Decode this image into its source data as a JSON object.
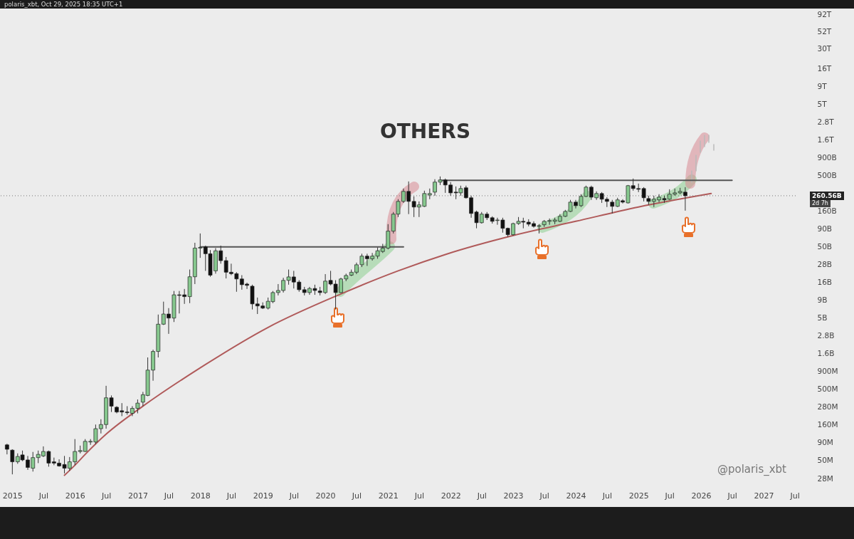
{
  "chart_data": {
    "type": "candlestick",
    "title": "OTHERS",
    "log": true,
    "x": [
      "2014-12",
      "2015-01",
      "2015-02",
      "2015-03",
      "2015-04",
      "2015-05",
      "2015-06",
      "2015-07",
      "2015-08",
      "2015-09",
      "2015-10",
      "2015-11",
      "2015-12",
      "2016-01",
      "2016-02",
      "2016-03",
      "2016-04",
      "2016-05",
      "2016-06",
      "2016-07",
      "2016-08",
      "2016-09",
      "2016-10",
      "2016-11",
      "2016-12",
      "2017-01",
      "2017-02",
      "2017-03",
      "2017-04",
      "2017-05",
      "2017-06",
      "2017-07",
      "2017-08",
      "2017-09",
      "2017-10",
      "2017-11",
      "2017-12",
      "2018-01",
      "2018-02",
      "2018-03",
      "2018-04",
      "2018-05",
      "2018-06",
      "2018-07",
      "2018-08",
      "2018-09",
      "2018-10",
      "2018-11",
      "2018-12",
      "2019-01",
      "2019-02",
      "2019-03",
      "2019-04",
      "2019-05",
      "2019-06",
      "2019-07",
      "2019-08",
      "2019-09",
      "2019-10",
      "2019-11",
      "2019-12",
      "2020-01",
      "2020-02",
      "2020-03",
      "2020-04",
      "2020-05",
      "2020-06",
      "2020-07",
      "2020-08",
      "2020-09",
      "2020-10",
      "2020-11",
      "2020-12",
      "2021-01",
      "2021-02",
      "2021-03",
      "2021-04",
      "2021-05",
      "2021-06",
      "2021-07",
      "2021-08",
      "2021-09",
      "2021-10",
      "2021-11",
      "2021-12",
      "2022-01",
      "2022-02",
      "2022-03",
      "2022-04",
      "2022-05",
      "2022-06",
      "2022-07",
      "2022-08",
      "2022-09",
      "2022-10",
      "2022-11",
      "2022-12",
      "2023-01",
      "2023-02",
      "2023-03",
      "2023-04",
      "2023-05",
      "2023-06",
      "2023-07",
      "2023-08",
      "2023-09",
      "2023-10",
      "2023-11",
      "2023-12",
      "2024-01",
      "2024-02",
      "2024-03",
      "2024-04",
      "2024-05",
      "2024-06",
      "2024-07",
      "2024-08",
      "2024-09",
      "2024-10",
      "2024-11",
      "2024-12",
      "2025-01",
      "2025-02",
      "2025-03",
      "2025-04",
      "2025-05",
      "2025-06",
      "2025-07",
      "2025-08",
      "2025-09",
      "2025-10"
    ],
    "ohlc": [
      [
        83000000.0,
        86000000.0,
        61000000.0,
        72000000.0
      ],
      [
        70000000.0,
        72000000.0,
        32000000.0,
        48000000.0
      ],
      [
        48000000.0,
        63000000.0,
        45000000.0,
        57000000.0
      ],
      [
        60000000.0,
        69000000.0,
        49000000.0,
        51000000.0
      ],
      [
        51000000.0,
        58000000.0,
        37000000.0,
        40000000.0
      ],
      [
        39000000.0,
        66000000.0,
        35000000.0,
        55000000.0
      ],
      [
        55000000.0,
        69000000.0,
        46000000.0,
        61000000.0
      ],
      [
        58000000.0,
        79000000.0,
        56000000.0,
        67000000.0
      ],
      [
        67000000.0,
        69000000.0,
        41000000.0,
        46000000.0
      ],
      [
        48000000.0,
        55000000.0,
        43000000.0,
        46000000.0
      ],
      [
        46000000.0,
        52000000.0,
        41000000.0,
        42000000.0
      ],
      [
        44000000.0,
        58000000.0,
        33000000.0,
        39000000.0
      ],
      [
        39000000.0,
        56000000.0,
        36000000.0,
        48000000.0
      ],
      [
        48000000.0,
        100000000.0,
        43000000.0,
        67000000.0
      ],
      [
        67000000.0,
        81000000.0,
        63000000.0,
        69000000.0
      ],
      [
        67000000.0,
        100000000.0,
        66000000.0,
        93000000.0
      ],
      [
        91000000.0,
        100000000.0,
        83000000.0,
        93000000.0
      ],
      [
        91000000.0,
        160000000.0,
        85000000.0,
        140000000.0
      ],
      [
        140000000.0,
        190000000.0,
        120000000.0,
        160000000.0
      ],
      [
        160000000.0,
        560000000.0,
        140000000.0,
        380000000.0
      ],
      [
        380000000.0,
        410000000.0,
        240000000.0,
        290000000.0
      ],
      [
        280000000.0,
        290000000.0,
        230000000.0,
        240000000.0
      ],
      [
        250000000.0,
        320000000.0,
        210000000.0,
        240000000.0
      ],
      [
        240000000.0,
        290000000.0,
        220000000.0,
        235000000.0
      ],
      [
        230000000.0,
        290000000.0,
        210000000.0,
        270000000.0
      ],
      [
        270000000.0,
        360000000.0,
        230000000.0,
        320000000.0
      ],
      [
        330000000.0,
        460000000.0,
        290000000.0,
        420000000.0
      ],
      [
        410000000.0,
        1400000000.0,
        400000000.0,
        930000000.0
      ],
      [
        930000000.0,
        1800000000.0,
        660000000.0,
        1700000000.0
      ],
      [
        1700000000.0,
        5600000000.0,
        1400000000.0,
        4100000000.0
      ],
      [
        4100000000.0,
        8500000000.0,
        4000000000.0,
        5700000000.0
      ],
      [
        5700000000.0,
        6900000000.0,
        3000000000.0,
        5000000000.0
      ],
      [
        5000000000.0,
        12000000000.0,
        4400000000.0,
        10600000000.0
      ],
      [
        10600000000.0,
        12000000000.0,
        5800000000.0,
        10400000000.0
      ],
      [
        10600000000.0,
        12800000000.0,
        7900000000.0,
        10000000000.0
      ],
      [
        10000000000.0,
        24000000000.0,
        8100000000.0,
        19000000000.0
      ],
      [
        19000000000.0,
        57000000000.0,
        15000000000.0,
        48000000000.0
      ],
      [
        48000000000.0,
        77000000000.0,
        35000000000.0,
        49000000000.0
      ],
      [
        50000000000.0,
        52000000000.0,
        23000000000.0,
        40000000000.0
      ],
      [
        40000000000.0,
        45000000000.0,
        19000000000.0,
        20000000000.0
      ],
      [
        23000000000.0,
        48000000000.0,
        21000000000.0,
        44000000000.0
      ],
      [
        44000000000.0,
        52000000000.0,
        29000000000.0,
        32000000000.0
      ],
      [
        32000000000.0,
        36000000000.0,
        18000000000.0,
        22000000000.0
      ],
      [
        22000000000.0,
        29000000000.0,
        20000000000.0,
        21000000000.0
      ],
      [
        21000000000.0,
        22000000000.0,
        11700000000.0,
        17700000000.0
      ],
      [
        17700000000.0,
        20000000000.0,
        12500000000.0,
        14700000000.0
      ],
      [
        15000000000.0,
        15700000000.0,
        12800000000.0,
        14400000000.0
      ],
      [
        14000000000.0,
        14700000000.0,
        6600000000.0,
        7900000000.0
      ],
      [
        7900000000.0,
        9700000000.0,
        5700000000.0,
        7400000000.0
      ],
      [
        7400000000.0,
        8300000000.0,
        6700000000.0,
        6900000000.0
      ],
      [
        6900000000.0,
        9700000000.0,
        6600000000.0,
        8600000000.0
      ],
      [
        8500000000.0,
        12000000000.0,
        8100000000.0,
        11400000000.0
      ],
      [
        11400000000.0,
        15000000000.0,
        10400000000.0,
        12200000000.0
      ],
      [
        12200000000.0,
        18400000000.0,
        11400000000.0,
        16900000000.0
      ],
      [
        16900000000.0,
        24000000000.0,
        14700000000.0,
        18900000000.0
      ],
      [
        18900000000.0,
        23000000000.0,
        13000000000.0,
        16000000000.0
      ],
      [
        16000000000.0,
        17000000000.0,
        11700000000.0,
        12500000000.0
      ],
      [
        12500000000.0,
        13700000000.0,
        10400000000.0,
        11400000000.0
      ],
      [
        11400000000.0,
        13700000000.0,
        10600000000.0,
        13000000000.0
      ],
      [
        13000000000.0,
        14700000000.0,
        10600000000.0,
        12200000000.0
      ],
      [
        12000000000.0,
        13700000000.0,
        10400000000.0,
        11400000000.0
      ],
      [
        11400000000.0,
        20700000000.0,
        10900000000.0,
        16500000000.0
      ],
      [
        16900000000.0,
        23000000000.0,
        14400000000.0,
        15000000000.0
      ],
      [
        15000000000.0,
        17000000000.0,
        6600000000.0,
        11400000000.0
      ],
      [
        11400000000.0,
        18400000000.0,
        11200000000.0,
        17700000000.0
      ],
      [
        17700000000.0,
        21000000000.0,
        16500000000.0,
        19800000000.0
      ],
      [
        20000000000.0,
        24000000000.0,
        19400000000.0,
        22000000000.0
      ],
      [
        22000000000.0,
        30000000000.0,
        20700000000.0,
        28000000000.0
      ],
      [
        28000000000.0,
        40000000000.0,
        26000000000.0,
        37000000000.0
      ],
      [
        37000000000.0,
        40000000000.0,
        27000000000.0,
        34000000000.0
      ],
      [
        34000000000.0,
        41000000000.0,
        32000000000.0,
        37000000000.0
      ],
      [
        37000000000.0,
        49000000000.0,
        34000000000.0,
        44000000000.0
      ],
      [
        43000000000.0,
        55000000000.0,
        41000000000.0,
        48000000000.0
      ],
      [
        48000000000.0,
        104000000000.0,
        46000000000.0,
        83000000000.0
      ],
      [
        83000000000.0,
        154000000000.0,
        77000000000.0,
        144000000000.0
      ],
      [
        144000000000.0,
        233000000000.0,
        131000000000.0,
        217000000000.0
      ],
      [
        217000000000.0,
        329000000000.0,
        207000000000.0,
        300000000000.0
      ],
      [
        300000000000.0,
        414000000000.0,
        144000000000.0,
        217000000000.0
      ],
      [
        217000000000.0,
        255000000000.0,
        131000000000.0,
        181000000000.0
      ],
      [
        181000000000.0,
        217000000000.0,
        131000000000.0,
        194000000000.0
      ],
      [
        185000000000.0,
        307000000000.0,
        181000000000.0,
        280000000000.0
      ],
      [
        267000000000.0,
        329000000000.0,
        233000000000.0,
        280000000000.0
      ],
      [
        293000000000.0,
        444000000000.0,
        261000000000.0,
        405000000000.0
      ],
      [
        405000000000.0,
        486000000000.0,
        369000000000.0,
        434000000000.0
      ],
      [
        434000000000.0,
        454000000000.0,
        286000000000.0,
        369000000000.0
      ],
      [
        369000000000.0,
        405000000000.0,
        261000000000.0,
        286000000000.0
      ],
      [
        293000000000.0,
        352000000000.0,
        233000000000.0,
        286000000000.0
      ],
      [
        286000000000.0,
        361000000000.0,
        261000000000.0,
        329000000000.0
      ],
      [
        337000000000.0,
        361000000000.0,
        238000000000.0,
        244000000000.0
      ],
      [
        244000000000.0,
        261000000000.0,
        128000000000.0,
        147000000000.0
      ],
      [
        154000000000.0,
        161000000000.0,
        91000000000.0,
        109000000000.0
      ],
      [
        109000000000.0,
        154000000000.0,
        106000000000.0,
        144000000000.0
      ],
      [
        144000000000.0,
        154000000000.0,
        119000000000.0,
        128000000000.0
      ],
      [
        128000000000.0,
        134000000000.0,
        106000000000.0,
        114000000000.0
      ],
      [
        117000000000.0,
        128000000000.0,
        102000000000.0,
        119000000000.0
      ],
      [
        119000000000.0,
        128000000000.0,
        79000000000.0,
        91000000000.0
      ],
      [
        91000000000.0,
        93000000000.0,
        69000000000.0,
        74000000000.0
      ],
      [
        74000000000.0,
        109000000000.0,
        72000000000.0,
        106000000000.0
      ],
      [
        106000000000.0,
        131000000000.0,
        102000000000.0,
        114000000000.0
      ],
      [
        114000000000.0,
        128000000000.0,
        91000000000.0,
        111000000000.0
      ],
      [
        111000000000.0,
        122000000000.0,
        97000000000.0,
        104000000000.0
      ],
      [
        106000000000.0,
        114000000000.0,
        93000000000.0,
        97000000000.0
      ],
      [
        97000000000.0,
        104000000000.0,
        77000000000.0,
        99000000000.0
      ],
      [
        102000000000.0,
        119000000000.0,
        95000000000.0,
        114000000000.0
      ],
      [
        114000000000.0,
        125000000000.0,
        102000000000.0,
        117000000000.0
      ],
      [
        114000000000.0,
        128000000000.0,
        104000000000.0,
        119000000000.0
      ],
      [
        114000000000.0,
        144000000000.0,
        111000000000.0,
        134000000000.0
      ],
      [
        134000000000.0,
        165000000000.0,
        131000000000.0,
        157000000000.0
      ],
      [
        157000000000.0,
        228000000000.0,
        154000000000.0,
        212000000000.0
      ],
      [
        212000000000.0,
        228000000000.0,
        173000000000.0,
        189000000000.0
      ],
      [
        189000000000.0,
        274000000000.0,
        181000000000.0,
        255000000000.0
      ],
      [
        255000000000.0,
        361000000000.0,
        250000000000.0,
        344000000000.0
      ],
      [
        344000000000.0,
        361000000000.0,
        228000000000.0,
        249000000000.0
      ],
      [
        244000000000.0,
        300000000000.0,
        228000000000.0,
        280000000000.0
      ],
      [
        280000000000.0,
        293000000000.0,
        207000000000.0,
        233000000000.0
      ],
      [
        233000000000.0,
        249000000000.0,
        181000000000.0,
        217000000000.0
      ],
      [
        212000000000.0,
        228000000000.0,
        147000000000.0,
        185000000000.0
      ],
      [
        185000000000.0,
        244000000000.0,
        181000000000.0,
        228000000000.0
      ],
      [
        222000000000.0,
        233000000000.0,
        203000000000.0,
        212000000000.0
      ],
      [
        207000000000.0,
        369000000000.0,
        203000000000.0,
        361000000000.0
      ],
      [
        361000000000.0,
        454000000000.0,
        307000000000.0,
        329000000000.0
      ],
      [
        329000000000.0,
        386000000000.0,
        293000000000.0,
        321000000000.0
      ],
      [
        329000000000.0,
        344000000000.0,
        217000000000.0,
        244000000000.0
      ],
      [
        238000000000.0,
        261000000000.0,
        194000000000.0,
        217000000000.0
      ],
      [
        217000000000.0,
        261000000000.0,
        181000000000.0,
        233000000000.0
      ],
      [
        228000000000.0,
        274000000000.0,
        212000000000.0,
        249000000000.0
      ],
      [
        238000000000.0,
        261000000000.0,
        207000000000.0,
        228000000000.0
      ],
      [
        233000000000.0,
        321000000000.0,
        228000000000.0,
        274000000000.0
      ],
      [
        274000000000.0,
        329000000000.0,
        261000000000.0,
        286000000000.0
      ],
      [
        286000000000.0,
        337000000000.0,
        274000000000.0,
        300000000000.0
      ],
      [
        293000000000.0,
        344000000000.0,
        161000000000.0,
        260560000000.0
      ]
    ],
    "colors": [
      "#111111",
      "#111111",
      "#86c88e",
      "#111111",
      "#111111",
      "#86c88e",
      "#86c88e",
      "#86c88e",
      "#111111",
      "#111111",
      "#111111",
      "#111111",
      "#86c88e",
      "#86c88e",
      "#86c88e",
      "#86c88e",
      "#86c88e",
      "#86c88e",
      "#86c88e",
      "#86c88e",
      "#111111",
      "#111111",
      "#111111",
      "#111111",
      "#86c88e",
      "#86c88e",
      "#86c88e",
      "#86c88e",
      "#86c88e",
      "#86c88e",
      "#86c88e",
      "#111111",
      "#86c88e",
      "#111111",
      "#111111",
      "#86c88e",
      "#86c88e",
      "#86c88e",
      "#111111",
      "#111111",
      "#86c88e",
      "#111111",
      "#111111",
      "#111111",
      "#111111",
      "#111111",
      "#111111",
      "#111111",
      "#111111",
      "#111111",
      "#86c88e",
      "#86c88e",
      "#86c88e",
      "#86c88e",
      "#86c88e",
      "#111111",
      "#111111",
      "#111111",
      "#86c88e",
      "#111111",
      "#111111",
      "#86c88e",
      "#111111",
      "#111111",
      "#86c88e",
      "#86c88e",
      "#86c88e",
      "#86c88e",
      "#86c88e",
      "#111111",
      "#86c88e",
      "#86c88e",
      "#86c88e",
      "#86c88e",
      "#86c88e",
      "#86c88e",
      "#86c88e",
      "#111111",
      "#111111",
      "#86c88e",
      "#86c88e",
      "#86c88e",
      "#86c88e",
      "#86c88e",
      "#111111",
      "#111111",
      "#111111",
      "#86c88e",
      "#111111",
      "#111111",
      "#111111",
      "#86c88e",
      "#111111",
      "#111111",
      "#86c88e",
      "#111111",
      "#111111",
      "#86c88e",
      "#86c88e",
      "#111111",
      "#111111",
      "#111111",
      "#86c88e",
      "#86c88e",
      "#86c88e",
      "#86c88e",
      "#86c88e",
      "#86c88e",
      "#86c88e",
      "#111111",
      "#86c88e",
      "#86c88e",
      "#111111",
      "#86c88e",
      "#111111",
      "#111111",
      "#111111",
      "#86c88e",
      "#111111",
      "#86c88e",
      "#111111",
      "#111111",
      "#111111",
      "#111111",
      "#86c88e",
      "#86c88e",
      "#111111",
      "#86c88e",
      "#86c88e",
      "#86c88e",
      "#111111"
    ],
    "series": [
      {
        "type": "line",
        "color": "#b05a5a",
        "x": [
          "2015-11",
          "2016-01",
          "2016-03",
          "2016-07",
          "2017-02",
          "2018-01",
          "2019-02",
          "2020-04",
          "2021-03",
          "2021-12",
          "2023-01",
          "2024-01",
          "2025-01",
          "2026-03"
        ],
        "values": [
          31000000.0,
          43000000.0,
          61000000.0,
          117000000.0,
          290000000.0,
          1000000000.0,
          3700000000.0,
          10900000000.0,
          23000000000.0,
          39000000000.0,
          72000000000.0,
          114000000000.0,
          181000000000.0,
          280000000000.0
        ]
      },
      {
        "type": "line",
        "color": "#555555",
        "x": [
          "2018-01",
          "2021-04"
        ],
        "values": [
          50000000000.0,
          50000000000.0
        ]
      },
      {
        "type": "line",
        "color": "#555555",
        "x": [
          "2021-11",
          "2026-07"
        ],
        "values": [
          430000000000.0,
          430000000000.0
        ]
      }
    ],
    "xlim": [
      "2014-10-21",
      "2027-07-07"
    ],
    "xticks": [
      {
        "value": "2015-01",
        "label": "2015"
      },
      {
        "value": "2015-07",
        "label": "Jul"
      },
      {
        "value": "2016-01",
        "label": "2016"
      },
      {
        "value": "2016-07",
        "label": "Jul"
      },
      {
        "value": "2017-01",
        "label": "2017"
      },
      {
        "value": "2017-07",
        "label": "Jul"
      },
      {
        "value": "2018-01",
        "label": "2018"
      },
      {
        "value": "2018-07",
        "label": "Jul"
      },
      {
        "value": "2019-01",
        "label": "2019"
      },
      {
        "value": "2019-07",
        "label": "Jul"
      },
      {
        "value": "2020-01",
        "label": "2020"
      },
      {
        "value": "2020-07",
        "label": "Jul"
      },
      {
        "value": "2021-01",
        "label": "2021"
      },
      {
        "value": "2021-07",
        "label": "Jul"
      },
      {
        "value": "2022-01",
        "label": "2022"
      },
      {
        "value": "2022-07",
        "label": "Jul"
      },
      {
        "value": "2023-01",
        "label": "2023"
      },
      {
        "value": "2023-07",
        "label": "Jul"
      },
      {
        "value": "2024-01",
        "label": "2024"
      },
      {
        "value": "2024-07",
        "label": "Jul"
      },
      {
        "value": "2025-01",
        "label": "2025"
      },
      {
        "value": "2025-07",
        "label": "Jul"
      },
      {
        "value": "2026-01",
        "label": "2026"
      },
      {
        "value": "2026-07",
        "label": "Jul"
      },
      {
        "value": "2027-01",
        "label": "2027"
      },
      {
        "value": "2027-07",
        "label": "Jul"
      }
    ],
    "ylim": [
      28000000.0,
      92000000000000.0
    ],
    "yticks": [
      {
        "value": 28000000.0,
        "label": "28M"
      },
      {
        "value": 50000000.0,
        "label": "50M"
      },
      {
        "value": 90000000.0,
        "label": "90M"
      },
      {
        "value": 160000000.0,
        "label": "160M"
      },
      {
        "value": 280000000.0,
        "label": "280M"
      },
      {
        "value": 500000000.0,
        "label": "500M"
      },
      {
        "value": 900000000.0,
        "label": "900M"
      },
      {
        "value": 1600000000.0,
        "label": "1.6B"
      },
      {
        "value": 2800000000.0,
        "label": "2.8B"
      },
      {
        "value": 5000000000.0,
        "label": "5B"
      },
      {
        "value": 9000000000.0,
        "label": "9B"
      },
      {
        "value": 16000000000.0,
        "label": "16B"
      },
      {
        "value": 28000000000.0,
        "label": "28B"
      },
      {
        "value": 50000000000.0,
        "label": "50B"
      },
      {
        "value": 90000000000.0,
        "label": "90B"
      },
      {
        "value": 160000000000.0,
        "label": "160B"
      },
      {
        "value": 500000000000.0,
        "label": "500B"
      },
      {
        "value": 900000000000.0,
        "label": "900B"
      },
      {
        "value": 1600000000000.0,
        "label": "1.6T"
      },
      {
        "value": 2800000000000.0,
        "label": "2.8T"
      },
      {
        "value": 5000000000000.0,
        "label": "5T"
      },
      {
        "value": 9000000000000.0,
        "label": "9T"
      },
      {
        "value": 16000000000000.0,
        "label": "16T"
      },
      {
        "value": 30000000000000.0,
        "label": "30T"
      },
      {
        "value": 52000000000000.0,
        "label": "52T"
      },
      {
        "value": 92000000000000.0,
        "label": "92T"
      }
    ],
    "ref_lines": [
      {
        "axis": "y",
        "value": 260560000000.0,
        "label": "260.56B",
        "line_style": "dotted",
        "color": "#777777"
      }
    ],
    "annotations": [
      "polaris_xbt, Oct 29, 2025 18:35 UTC+1",
      "2d 7h",
      "@polaris_xbt"
    ]
  }
}
